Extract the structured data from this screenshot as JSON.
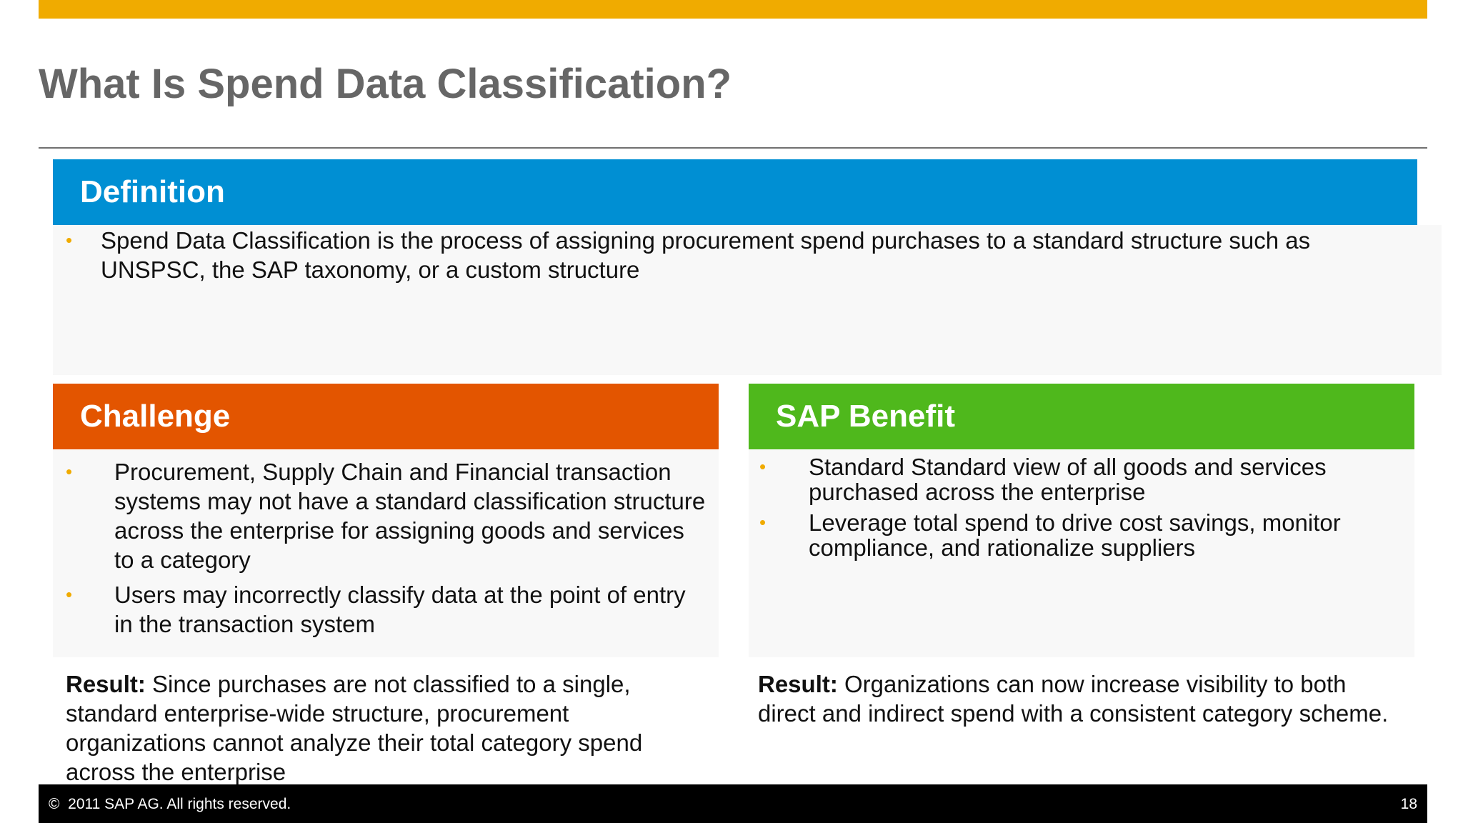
{
  "slide": {
    "title": "What Is Spend Data Classification?",
    "page_number": "18"
  },
  "definition": {
    "heading": "Definition",
    "bullets": [
      "Spend Data Classification is the process of assigning procurement spend purchases to a standard structure such as UNSPSC, the SAP taxonomy, or a custom structure"
    ]
  },
  "challenge": {
    "heading": "Challenge",
    "bullets": [
      "Procurement, Supply Chain and Financial transaction systems may not have a standard classification structure across the enterprise for assigning goods and services to a category",
      "Users may incorrectly classify data at the point of entry in the transaction system"
    ],
    "result_label": "Result:",
    "result_text": "Since purchases are not classified to a single, standard enterprise-wide structure, procurement organizations cannot analyze their total category spend across the enterprise"
  },
  "benefit": {
    "heading": "SAP Benefit",
    "bullets": [
      "Standard Standard view of all goods and services purchased across the enterprise",
      "Leverage total spend to drive cost savings, monitor compliance, and rationalize suppliers"
    ],
    "result_label": "Result:",
    "result_text": "Organizations can now increase visibility to both direct and indirect spend with a consistent category scheme."
  },
  "bullet_glyph": "•",
  "footer": {
    "copyright_symbol": "©",
    "copyright_text": "2011 SAP AG. All rights reserved."
  },
  "colors": {
    "accent_bar": "#f0ab00",
    "definition_header": "#008fd3",
    "challenge_header": "#e35500",
    "benefit_header": "#4fb81c",
    "bullet": "#f0ab00",
    "title_text": "#666666"
  }
}
